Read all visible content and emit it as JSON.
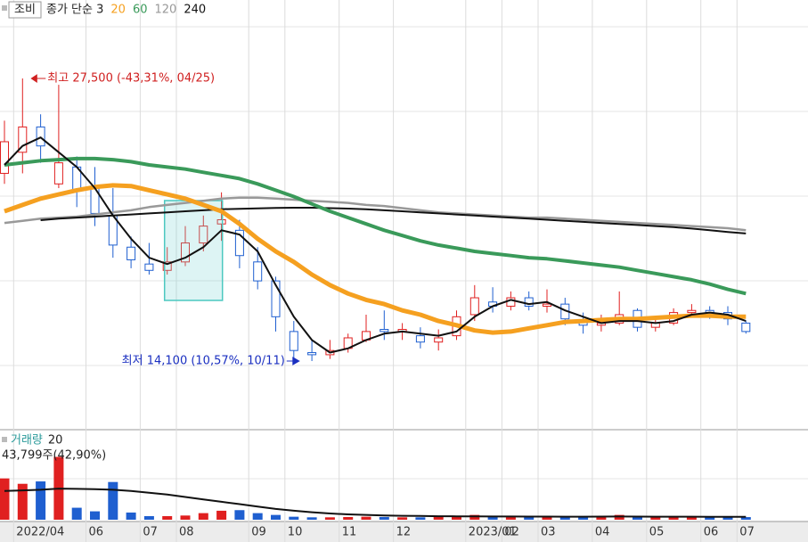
{
  "chart_data": {
    "type": "candlestick",
    "stock_name": "조비",
    "categories": [
      null,
      "2022/04",
      null,
      null,
      null,
      "06",
      null,
      null,
      "07",
      null,
      "08",
      null,
      null,
      null,
      "09",
      null,
      "10",
      null,
      null,
      "11",
      null,
      null,
      "12",
      null,
      null,
      null,
      "2023/01",
      null,
      "02",
      null,
      "03",
      null,
      null,
      "04",
      null,
      null,
      "05",
      null,
      null,
      "06",
      null,
      "07"
    ],
    "open": [
      23000,
      24000,
      25200,
      22500,
      23300,
      22400,
      21000,
      19500,
      18700,
      18400,
      18800,
      19700,
      20600,
      20300,
      18800,
      17900,
      15500,
      14500,
      14400,
      14700,
      15100,
      15600,
      15500,
      15300,
      15000,
      15300,
      16300,
      16900,
      16700,
      17100,
      16700,
      16800,
      16000,
      15800,
      15900,
      16500,
      15700,
      15900,
      16400,
      16500,
      16400,
      15900
    ],
    "close": [
      24500,
      25200,
      24300,
      23500,
      22200,
      21100,
      19600,
      18900,
      18400,
      18800,
      19700,
      20500,
      20800,
      19100,
      17900,
      16200,
      14600,
      14400,
      14600,
      15200,
      15500,
      15500,
      15600,
      15000,
      15200,
      16200,
      17100,
      16700,
      17100,
      16700,
      16800,
      16100,
      15800,
      15900,
      16300,
      15700,
      15900,
      16400,
      16500,
      16300,
      16100,
      15500
    ],
    "high": [
      25500,
      27500,
      25800,
      27200,
      23800,
      23300,
      22300,
      20000,
      19700,
      19500,
      20500,
      21000,
      22100,
      20800,
      19500,
      18100,
      16000,
      15100,
      15100,
      15400,
      16300,
      16500,
      15900,
      15700,
      15600,
      16500,
      17700,
      17600,
      17400,
      17400,
      17500,
      17100,
      16400,
      16300,
      17400,
      16600,
      16200,
      16600,
      16800,
      16700,
      16700,
      16000
    ],
    "low": [
      22500,
      23000,
      23500,
      22300,
      21400,
      20500,
      19000,
      18500,
      18200,
      18200,
      18600,
      19300,
      19800,
      18500,
      17500,
      15500,
      14100,
      14100,
      14200,
      14500,
      15000,
      15100,
      15100,
      14700,
      14600,
      15100,
      16000,
      16400,
      16500,
      16500,
      16400,
      15800,
      15400,
      15500,
      15800,
      15500,
      15500,
      15800,
      16200,
      16100,
      15800,
      15400
    ],
    "up_color": "#e02020",
    "down_color": "#1f5fd0",
    "ylim": [
      10930,
      31220
    ],
    "series": [
      {
        "name": "종가 단순 3",
        "color": "#111111",
        "values": [
          23400,
          24300,
          24700,
          24000,
          23300,
          22300,
          21000,
          19900,
          19000,
          18700,
          19000,
          19500,
          20300,
          20100,
          19300,
          17700,
          16200,
          15100,
          14500,
          14700,
          15100,
          15400,
          15500,
          15400,
          15300,
          15500,
          16200,
          16700,
          17000,
          16800,
          16900,
          16500,
          16200,
          15900,
          16000,
          16000,
          15900,
          16000,
          16300,
          16400,
          16300,
          16000
        ]
      },
      {
        "name": "20",
        "color": "#f5a020",
        "values": [
          21200,
          21500,
          21800,
          22000,
          22200,
          22350,
          22430,
          22400,
          22200,
          22000,
          21800,
          21500,
          21200,
          20600,
          19900,
          19300,
          18800,
          18200,
          17700,
          17300,
          17000,
          16800,
          16500,
          16300,
          16000,
          15800,
          15550,
          15450,
          15500,
          15650,
          15800,
          15950,
          16000,
          16050,
          16100,
          16100,
          16150,
          16200,
          16250,
          16250,
          16200,
          16200
        ]
      },
      {
        "name": "60",
        "color": "#3a9a5a",
        "values": [
          23400,
          23500,
          23600,
          23650,
          23700,
          23700,
          23650,
          23550,
          23400,
          23300,
          23200,
          23050,
          22900,
          22750,
          22500,
          22200,
          21900,
          21550,
          21200,
          20900,
          20600,
          20300,
          20050,
          19800,
          19600,
          19450,
          19300,
          19200,
          19100,
          19000,
          18950,
          18850,
          18750,
          18650,
          18550,
          18400,
          18250,
          18100,
          17950,
          17750,
          17500,
          17300
        ]
      },
      {
        "name": "120",
        "color": "#999999",
        "values": [
          20650,
          20750,
          20850,
          20900,
          20950,
          21050,
          21150,
          21250,
          21400,
          21500,
          21600,
          21700,
          21800,
          21850,
          21850,
          21800,
          21750,
          21700,
          21650,
          21600,
          21500,
          21450,
          21350,
          21250,
          21150,
          21100,
          21050,
          21000,
          20950,
          20900,
          20900,
          20850,
          20800,
          20750,
          20700,
          20650,
          20600,
          20550,
          20500,
          20450,
          20400,
          20300
        ]
      },
      {
        "name": "240",
        "color": "#111111",
        "values": [
          null,
          null,
          20780,
          20850,
          20900,
          20950,
          21000,
          21050,
          21100,
          21150,
          21200,
          21250,
          21300,
          21320,
          21340,
          21360,
          21370,
          21370,
          21350,
          21330,
          21300,
          21250,
          21200,
          21150,
          21100,
          21050,
          21000,
          20950,
          20900,
          20850,
          20800,
          20750,
          20700,
          20650,
          20600,
          20550,
          20500,
          20450,
          20380,
          20300,
          20220,
          20150
        ]
      }
    ],
    "annotations": [
      {
        "text": "최고 27,500 (-43,31%, 04/25)",
        "color": "#d02020"
      },
      {
        "text": "최저 14,100 (10,57%, 10/11)",
        "color": "#1a2fc0"
      }
    ],
    "volume": {
      "label": "거래량",
      "last_label": "43,799주(42,90%)",
      "ylim": [
        0,
        1400000
      ],
      "values": [
        690000,
        600000,
        640000,
        1050000,
        200000,
        140000,
        630000,
        120000,
        60000,
        60000,
        70000,
        110000,
        150000,
        160000,
        110000,
        80000,
        50000,
        40000,
        40000,
        45000,
        50000,
        45000,
        40000,
        40000,
        45000,
        50000,
        80000,
        50000,
        45000,
        45000,
        45000,
        45000,
        50000,
        55000,
        80000,
        50000,
        45000,
        45000,
        45000,
        45000,
        45000,
        43799
      ],
      "ma": {
        "name": "20",
        "color": "#111111",
        "values": [
          480000,
          490000,
          500000,
          520000,
          515000,
          510000,
          500000,
          480000,
          450000,
          420000,
          380000,
          340000,
          300000,
          260000,
          220000,
          180000,
          150000,
          125000,
          105000,
          90000,
          80000,
          72000,
          66000,
          62000,
          58000,
          56000,
          55000,
          54000,
          53000,
          52000,
          52000,
          51000,
          51000,
          52000,
          53000,
          52000,
          51000,
          50000,
          50000,
          49000,
          49000,
          48000
        ]
      }
    }
  }
}
